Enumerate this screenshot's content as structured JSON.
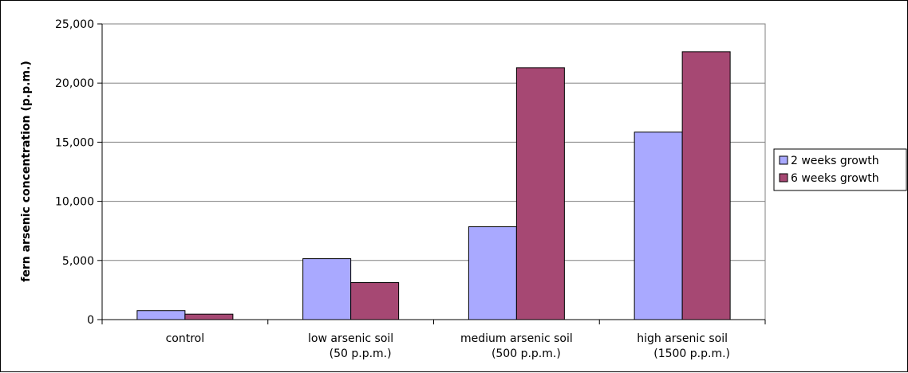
{
  "chart_data": {
    "type": "bar",
    "title": "",
    "xlabel": "",
    "ylabel": "fern arsenic concentration (p.p.m.)",
    "categories": [
      [
        "control"
      ],
      [
        "low arsenic soil",
        "(50 p.p.m.)"
      ],
      [
        "medium arsenic soil",
        "(500 p.p.m.)"
      ],
      [
        "high arsenic soil",
        "(1500 p.p.m.)"
      ]
    ],
    "series": [
      {
        "name": "2 weeks growth",
        "color": "#a9a9ff",
        "values": [
          760,
          5150,
          7850,
          15850
        ]
      },
      {
        "name": "6 weeks growth",
        "color": "#a64873",
        "values": [
          460,
          3130,
          21300,
          22650
        ]
      }
    ],
    "ylim": [
      0,
      25000
    ],
    "yticks": [
      0,
      5000,
      10000,
      15000,
      20000,
      25000
    ],
    "ytick_labels": [
      "0",
      "5,000",
      "10,000",
      "15,000",
      "20,000",
      "25,000"
    ],
    "grid": true,
    "legend_position": "right"
  }
}
